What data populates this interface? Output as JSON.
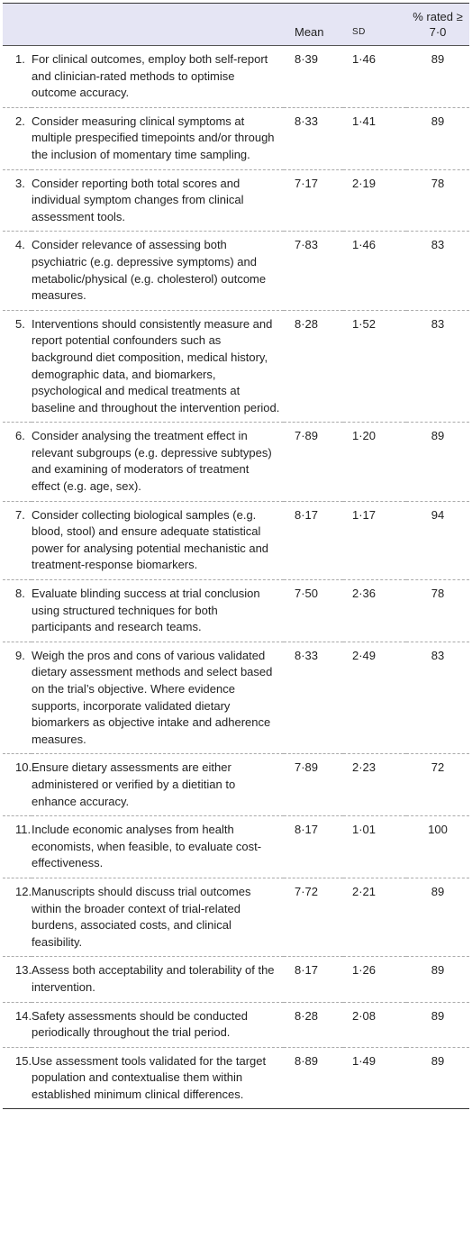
{
  "header": {
    "mean": "Mean",
    "sd": "SD",
    "pct": "% rated ≥ 7·0"
  },
  "rows": [
    {
      "number": "1.",
      "text": "For clinical outcomes, employ both self-report and clinician-rated methods to optimise outcome accuracy.",
      "mean": "8·39",
      "sd": "1·46",
      "pct": "89"
    },
    {
      "number": "2.",
      "text": "Consider measuring clinical symptoms at multiple prespecified timepoints and/or through the inclusion of momentary time sampling.",
      "mean": "8·33",
      "sd": "1·41",
      "pct": "89"
    },
    {
      "number": "3.",
      "text": "Consider reporting both total scores and individual symptom changes from clinical assessment tools.",
      "mean": "7·17",
      "sd": "2·19",
      "pct": "78"
    },
    {
      "number": "4.",
      "text": "Consider relevance of assessing both psychiatric (e.g. depressive symptoms) and metabolic/physical (e.g. cholesterol) outcome measures.",
      "mean": "7·83",
      "sd": "1·46",
      "pct": "83"
    },
    {
      "number": "5.",
      "text": "Interventions should consistently measure and report potential confounders such as background diet composition, medical history, demographic data, and biomarkers, psychological and medical treatments at baseline and throughout the intervention period.",
      "mean": "8·28",
      "sd": "1·52",
      "pct": "83"
    },
    {
      "number": "6.",
      "text": "Consider analysing the treatment effect in relevant subgroups (e.g. depressive subtypes) and examining of moderators of treatment effect (e.g. age, sex).",
      "mean": "7·89",
      "sd": "1·20",
      "pct": "89"
    },
    {
      "number": "7.",
      "text": "Consider collecting biological samples (e.g. blood, stool) and ensure adequate statistical power for analysing potential mechanistic and treatment-response biomarkers.",
      "mean": "8·17",
      "sd": "1·17",
      "pct": "94"
    },
    {
      "number": "8.",
      "text": "Evaluate blinding success at trial conclusion using structured techniques for both participants and research teams.",
      "mean": "7·50",
      "sd": "2·36",
      "pct": "78"
    },
    {
      "number": "9.",
      "text": "Weigh the pros and cons of various validated dietary assessment methods and select based on the trial’s objective. Where evidence supports, incorporate validated dietary biomarkers as objective intake and adherence measures.",
      "mean": "8·33",
      "sd": "2·49",
      "pct": "83"
    },
    {
      "number": "10.",
      "text": "Ensure dietary assessments are either administered or verified by a dietitian to enhance accuracy.",
      "mean": "7·89",
      "sd": "2·23",
      "pct": "72"
    },
    {
      "number": "11.",
      "text": "Include economic analyses from health economists, when feasible, to evaluate cost-effectiveness.",
      "mean": "8·17",
      "sd": "1·01",
      "pct": "100"
    },
    {
      "number": "12.",
      "text": "Manuscripts should discuss trial outcomes within the broader context of trial-related burdens, associated costs, and clinical feasibility.",
      "mean": "7·72",
      "sd": "2·21",
      "pct": "89"
    },
    {
      "number": "13.",
      "text": "Assess both acceptability and tolerability of the intervention.",
      "mean": "8·17",
      "sd": "1·26",
      "pct": "89"
    },
    {
      "number": "14.",
      "text": "Safety assessments should be conducted periodically throughout the trial period.",
      "mean": "8·28",
      "sd": "2·08",
      "pct": "89"
    },
    {
      "number": "15.",
      "text": "Use assessment tools validated for the target population and contextualise them within established minimum clinical differences.",
      "mean": "8·89",
      "sd": "1·49",
      "pct": "89"
    }
  ]
}
